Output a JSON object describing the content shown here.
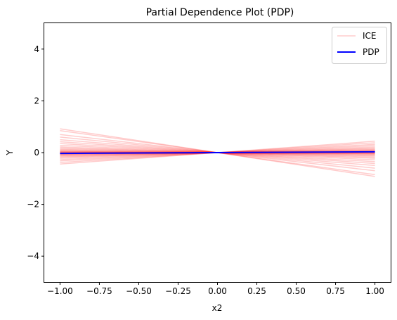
{
  "chart_data": {
    "type": "line",
    "title": "Partial Dependence Plot (PDP)",
    "xlabel": "x2",
    "ylabel": "Y",
    "xlim": [
      -1.1,
      1.1
    ],
    "ylim": [
      -5,
      5
    ],
    "xticks": [
      -1.0,
      -0.75,
      -0.5,
      -0.25,
      0.0,
      0.25,
      0.5,
      0.75,
      1.0
    ],
    "xtick_labels": [
      "−1.00",
      "−0.75",
      "−0.50",
      "−0.25",
      "0.00",
      "0.25",
      "0.50",
      "0.75",
      "1.00"
    ],
    "yticks": [
      -4,
      -2,
      0,
      2,
      4
    ],
    "ytick_labels": [
      "−4",
      "−2",
      "0",
      "2",
      "4"
    ],
    "grid": false,
    "legend_position": "top-right",
    "colors": {
      "ice": "#ff0000",
      "pdp": "#0000ff"
    },
    "series": [
      {
        "name": "ICE",
        "style": "faint",
        "x": [
          -1.0,
          0.0,
          1.0
        ],
        "lines": [
          [
            0.92,
            0.0,
            -0.92
          ],
          [
            0.85,
            0.0,
            -0.85
          ],
          [
            0.7,
            0.0,
            -0.7
          ],
          [
            0.6,
            0.0,
            -0.6
          ],
          [
            0.5,
            0.0,
            -0.5
          ],
          [
            0.42,
            0.0,
            -0.42
          ],
          [
            0.35,
            0.0,
            -0.35
          ],
          [
            0.28,
            0.0,
            -0.28
          ],
          [
            0.22,
            0.0,
            -0.22
          ],
          [
            0.18,
            0.0,
            -0.18
          ],
          [
            0.14,
            0.0,
            -0.14
          ],
          [
            0.11,
            0.0,
            -0.11
          ],
          [
            0.08,
            0.0,
            -0.08
          ],
          [
            0.06,
            0.0,
            -0.06
          ],
          [
            0.04,
            0.0,
            -0.04
          ],
          [
            0.03,
            0.0,
            -0.03
          ],
          [
            0.02,
            0.0,
            -0.02
          ],
          [
            0.01,
            0.0,
            -0.01
          ],
          [
            0.0,
            0.0,
            0.0
          ],
          [
            -0.01,
            0.0,
            0.01
          ],
          [
            -0.02,
            0.0,
            0.02
          ],
          [
            -0.03,
            0.0,
            0.03
          ],
          [
            -0.04,
            0.0,
            0.04
          ],
          [
            -0.05,
            0.0,
            0.05
          ],
          [
            -0.06,
            0.0,
            0.06
          ],
          [
            -0.08,
            0.0,
            0.08
          ],
          [
            -0.1,
            0.0,
            0.1
          ],
          [
            -0.12,
            0.0,
            0.12
          ],
          [
            -0.15,
            0.0,
            0.15
          ],
          [
            -0.18,
            0.0,
            0.18
          ],
          [
            -0.22,
            0.0,
            0.22
          ],
          [
            -0.27,
            0.0,
            0.27
          ],
          [
            -0.32,
            0.0,
            0.32
          ],
          [
            -0.38,
            0.0,
            0.38
          ],
          [
            -0.44,
            0.0,
            0.44
          ]
        ]
      },
      {
        "name": "PDP",
        "x": [
          -1.0,
          1.0
        ],
        "y": [
          -0.03,
          0.03
        ]
      }
    ]
  }
}
